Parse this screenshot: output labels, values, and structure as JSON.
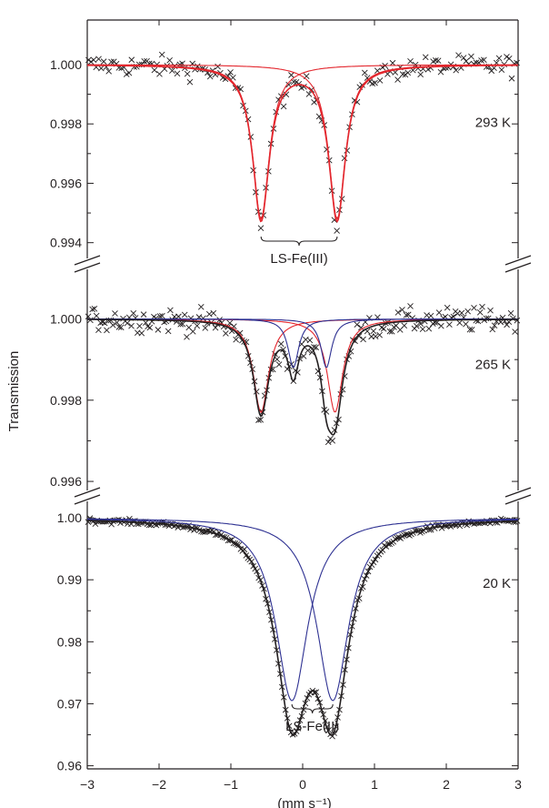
{
  "chart_data": {
    "type": "scatter",
    "ylabel": "Transmission",
    "xlabel": "(mm s⁻¹)",
    "xlim": [
      -3,
      3
    ],
    "xticks": [
      -3,
      -2,
      -1,
      0,
      1,
      2,
      3
    ],
    "xtick_labels": [
      "−3",
      "−2",
      "−1",
      "0",
      "1",
      "2",
      "3"
    ],
    "colors": {
      "data": "#231f20",
      "total_fit": "#231f20",
      "red": "#e3262d",
      "blue": "#2e3192"
    },
    "panels": [
      {
        "temperature_label": "293 K",
        "ylim": [
          0.9935,
          1.0015
        ],
        "yticks": [
          0.994,
          0.996,
          0.998,
          1.0
        ],
        "ytick_labels": [
          "0.994",
          "0.996",
          "0.998",
          "1.000"
        ],
        "annotation": "LS-Fe(III)",
        "annotation_x_range": [
          -0.58,
          0.48
        ],
        "components": [
          {
            "color": "red",
            "center": -0.58,
            "depth": 0.0052,
            "hwhm": 0.14
          },
          {
            "color": "red",
            "center": 0.48,
            "depth": 0.0052,
            "hwhm": 0.14
          }
        ],
        "noise": 0.00035,
        "n_points": 170
      },
      {
        "temperature_label": "265 K",
        "ylim": [
          0.9958,
          1.0012
        ],
        "yticks": [
          0.996,
          0.998,
          1.0
        ],
        "ytick_labels": [
          "0.996",
          "0.998",
          "1.000"
        ],
        "annotation": "",
        "components": [
          {
            "color": "red",
            "center": -0.58,
            "depth": 0.0023,
            "hwhm": 0.13
          },
          {
            "color": "red",
            "center": 0.45,
            "depth": 0.0023,
            "hwhm": 0.13
          },
          {
            "color": "blue",
            "center": -0.13,
            "depth": 0.0012,
            "hwhm": 0.09
          },
          {
            "color": "blue",
            "center": 0.33,
            "depth": 0.0012,
            "hwhm": 0.09
          }
        ],
        "noise": 0.0003,
        "n_points": 210
      },
      {
        "temperature_label": "20 K",
        "ylim": [
          0.9595,
          1.0025
        ],
        "yticks": [
          0.96,
          0.97,
          0.98,
          0.99,
          1.0
        ],
        "ytick_labels": [
          "0.96",
          "0.97",
          "0.98",
          "0.99",
          "1.00"
        ],
        "annotation": "LS-Fe(II)",
        "annotation_x_range": [
          -0.15,
          0.42
        ],
        "components": [
          {
            "color": "blue",
            "center": -0.15,
            "depth": 0.0295,
            "hwhm": 0.27
          },
          {
            "color": "blue",
            "center": 0.42,
            "depth": 0.0295,
            "hwhm": 0.27
          }
        ],
        "noise": 0.0004,
        "n_points": 240
      }
    ]
  }
}
